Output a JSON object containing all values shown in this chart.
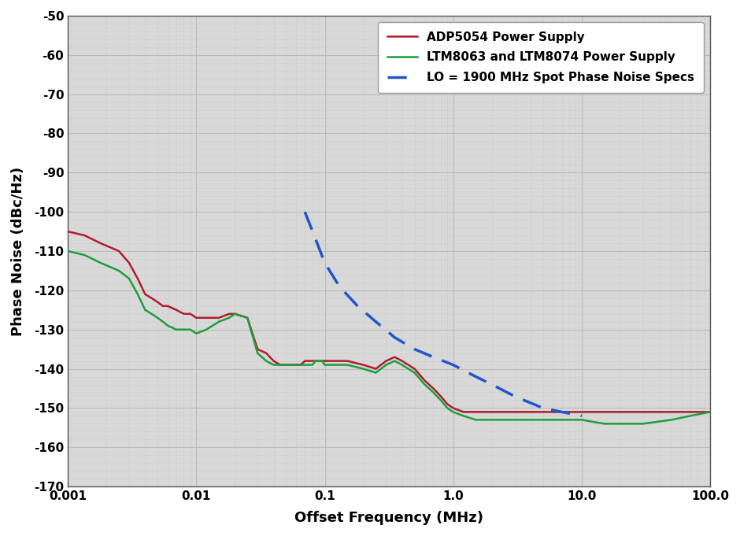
{
  "title": "",
  "xlabel": "Offset Frequency (MHz)",
  "ylabel": "Phase Noise (dBc/Hz)",
  "ylim": [
    -170,
    -50
  ],
  "yticks": [
    -170,
    -160,
    -150,
    -140,
    -130,
    -120,
    -110,
    -100,
    -90,
    -80,
    -70,
    -60,
    -50
  ],
  "xtick_labels": [
    "0.001",
    "0.01",
    "0.1",
    "1.0",
    "10.0",
    "100.0"
  ],
  "xtick_positions": [
    0.001,
    0.01,
    0.1,
    1.0,
    10.0,
    100.0
  ],
  "plot_bg_color": "#d8d8d8",
  "fig_bg_color": "#ffffff",
  "grid_major_color": "#bbbbbb",
  "grid_minor_color": "#cccccc",
  "line1_color": "#b01c2e",
  "line2_color": "#1d9e3c",
  "line3_color": "#2255cc",
  "legend_labels": [
    "ADP5054 Power Supply",
    "LTM8063 and LTM8074 Power Supply",
    "LO = 1900 MHz Spot Phase Noise Specs"
  ],
  "adp5054_x": [
    0.001,
    0.00135,
    0.0018,
    0.0025,
    0.003,
    0.0035,
    0.004,
    0.0045,
    0.005,
    0.0055,
    0.006,
    0.007,
    0.008,
    0.009,
    0.01,
    0.012,
    0.015,
    0.018,
    0.02,
    0.025,
    0.03,
    0.035,
    0.04,
    0.045,
    0.05,
    0.055,
    0.06,
    0.065,
    0.07,
    0.075,
    0.08,
    0.085,
    0.09,
    0.095,
    0.1,
    0.12,
    0.15,
    0.2,
    0.25,
    0.3,
    0.35,
    0.4,
    0.5,
    0.6,
    0.7,
    0.8,
    0.9,
    1.0,
    1.2,
    1.5,
    2.0,
    3.0,
    4.0,
    5.0,
    7.0,
    10.0,
    15.0,
    20.0,
    30.0,
    50.0,
    70.0,
    100.0
  ],
  "adp5054_y": [
    -105,
    -106,
    -108,
    -110,
    -113,
    -117,
    -121,
    -122,
    -123,
    -124,
    -124,
    -125,
    -126,
    -126,
    -127,
    -127,
    -127,
    -126,
    -126,
    -127,
    -135,
    -136,
    -138,
    -139,
    -139,
    -139,
    -139,
    -139,
    -138,
    -138,
    -138,
    -138,
    -138,
    -138,
    -138,
    -138,
    -138,
    -139,
    -140,
    -138,
    -137,
    -138,
    -140,
    -143,
    -145,
    -147,
    -149,
    -150,
    -151,
    -151,
    -151,
    -151,
    -151,
    -151,
    -151,
    -151,
    -151,
    -151,
    -151,
    -151,
    -151,
    -151
  ],
  "ltm_x": [
    0.001,
    0.00135,
    0.0018,
    0.0025,
    0.003,
    0.0035,
    0.004,
    0.0045,
    0.005,
    0.0055,
    0.006,
    0.007,
    0.008,
    0.009,
    0.01,
    0.012,
    0.015,
    0.018,
    0.02,
    0.025,
    0.03,
    0.035,
    0.04,
    0.045,
    0.05,
    0.055,
    0.06,
    0.065,
    0.07,
    0.075,
    0.08,
    0.085,
    0.09,
    0.095,
    0.1,
    0.12,
    0.15,
    0.2,
    0.25,
    0.3,
    0.35,
    0.4,
    0.5,
    0.6,
    0.7,
    0.8,
    0.9,
    1.0,
    1.2,
    1.5,
    2.0,
    3.0,
    4.0,
    5.0,
    7.0,
    10.0,
    15.0,
    20.0,
    30.0,
    50.0,
    70.0,
    100.0
  ],
  "ltm_y": [
    -110,
    -111,
    -113,
    -115,
    -117,
    -121,
    -125,
    -126,
    -127,
    -128,
    -129,
    -130,
    -130,
    -130,
    -131,
    -130,
    -128,
    -127,
    -126,
    -127,
    -136,
    -138,
    -139,
    -139,
    -139,
    -139,
    -139,
    -139,
    -139,
    -139,
    -139,
    -138,
    -138,
    -138,
    -139,
    -139,
    -139,
    -140,
    -141,
    -139,
    -138,
    -139,
    -141,
    -144,
    -146,
    -148,
    -150,
    -151,
    -152,
    -153,
    -153,
    -153,
    -153,
    -153,
    -153,
    -153,
    -154,
    -154,
    -154,
    -153,
    -152,
    -151
  ],
  "spec_x": [
    0.07,
    0.085,
    0.1,
    0.13,
    0.18,
    0.25,
    0.35,
    0.5,
    0.7,
    1.0,
    1.5,
    2.0,
    3.0,
    5.0,
    7.0,
    10.0
  ],
  "spec_y": [
    -100,
    -107,
    -113,
    -119,
    -124,
    -128,
    -132,
    -135,
    -137,
    -139,
    -142,
    -144,
    -147,
    -150,
    -151,
    -152
  ]
}
